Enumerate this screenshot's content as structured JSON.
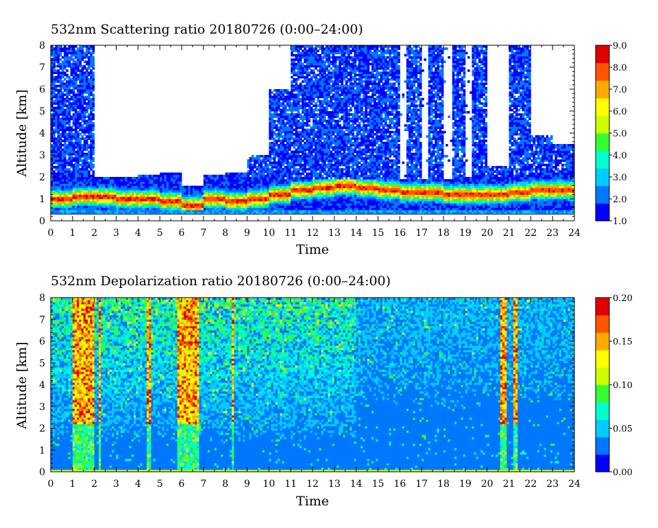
{
  "chart_data": [
    {
      "type": "heatmap",
      "title": "532nm Scattering ratio  20180726 (0:00–24:00)",
      "xlabel": "Time",
      "ylabel": "Altitude [km]",
      "xlim": [
        0,
        24
      ],
      "ylim": [
        0,
        8
      ],
      "x_ticks": [
        "0",
        "1",
        "2",
        "3",
        "4",
        "5",
        "6",
        "7",
        "8",
        "9",
        "10",
        "11",
        "12",
        "13",
        "14",
        "15",
        "16",
        "17",
        "18",
        "19",
        "20",
        "21",
        "22",
        "23",
        "24"
      ],
      "y_ticks": [
        "0",
        "1",
        "2",
        "3",
        "4",
        "5",
        "6",
        "7",
        "8"
      ],
      "colorbar": {
        "min": 1.0,
        "max": 9.0,
        "ticks": [
          "1.0",
          "2.0",
          "3.0",
          "4.0",
          "5.0",
          "6.0",
          "7.0",
          "8.0",
          "9.0"
        ],
        "colors": [
          "#0000ff",
          "#0077ff",
          "#00ccff",
          "#00ffcc",
          "#33ff33",
          "#ccff00",
          "#ffff00",
          "#ffaa00",
          "#ff5500",
          "#e00000"
        ]
      },
      "features": {
        "low_cloud_top_km": [
          2.2,
          2.1,
          2.0,
          2.0,
          2.1,
          2.2,
          1.6,
          2.1,
          2.2,
          2.0,
          1.9,
          1.8,
          1.9,
          1.9,
          1.9,
          1.9,
          1.9,
          1.9,
          1.9,
          2.0,
          2.0,
          2.1,
          2.2,
          2.2
        ],
        "layer_peak_km": [
          1.0,
          1.1,
          1.1,
          1.0,
          1.0,
          0.9,
          0.7,
          1.0,
          0.9,
          1.0,
          1.2,
          1.4,
          1.5,
          1.6,
          1.5,
          1.4,
          1.3,
          1.3,
          1.2,
          1.2,
          1.2,
          1.3,
          1.4,
          1.4
        ],
        "upper_signal_top_km": [
          8,
          8,
          0,
          0,
          0,
          0,
          0,
          0,
          0,
          3,
          6,
          8,
          8,
          8,
          8,
          8,
          8,
          8,
          8,
          8,
          2.5,
          8,
          3.9,
          3.5
        ]
      }
    },
    {
      "type": "heatmap",
      "title": "532nm Depolarization ratio  20180726 (0:00–24:00)",
      "xlabel": "Time",
      "ylabel": "Altitude [km]",
      "xlim": [
        0,
        24
      ],
      "ylim": [
        0,
        8
      ],
      "x_ticks": [
        "0",
        "1",
        "2",
        "3",
        "4",
        "5",
        "6",
        "7",
        "8",
        "9",
        "10",
        "11",
        "12",
        "13",
        "14",
        "15",
        "16",
        "17",
        "18",
        "19",
        "20",
        "21",
        "22",
        "23",
        "24"
      ],
      "y_ticks": [
        "0",
        "1",
        "2",
        "3",
        "4",
        "5",
        "6",
        "7",
        "8"
      ],
      "colorbar": {
        "min": 0.0,
        "max": 0.2,
        "ticks": [
          "0.00",
          "0.05",
          "0.10",
          "0.15",
          "0.20"
        ],
        "colors": [
          "#0000ff",
          "#0077ff",
          "#00ccff",
          "#00ffcc",
          "#33ff33",
          "#ccff00",
          "#ffff00",
          "#ffaa00",
          "#ff5500",
          "#e00000"
        ]
      },
      "features": {
        "high_depol_columns_h": [
          [
            1.0,
            2.0
          ],
          [
            5.8,
            6.8
          ],
          [
            4.4,
            4.6
          ],
          [
            2.2,
            2.3
          ],
          [
            20.6,
            20.9
          ],
          [
            21.2,
            21.4
          ],
          [
            8.3,
            8.4
          ]
        ]
      }
    }
  ]
}
